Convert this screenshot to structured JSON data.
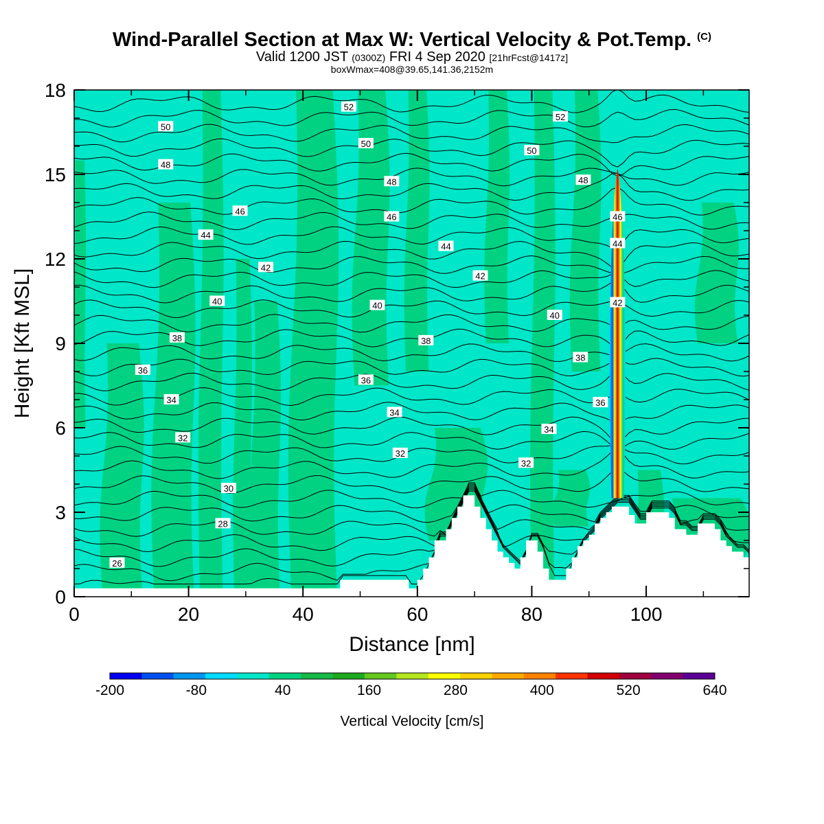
{
  "header": {
    "title": "Wind-Parallel Section at Max W: Vertical Velocity & Pot.Temp.",
    "copyright": "(C)",
    "valid_prefix": "Valid 1200 JST",
    "zulu": "(0300Z)",
    "valid_date": "FRI 4 Sep 2020",
    "forecast_tag": "[21hrFcst@1417z]",
    "box_info": "boxWmax=408@39.65,141.36,2152m"
  },
  "chart_data": {
    "type": "contour cross-section (filled vertical velocity + potential temperature isolines)",
    "xlabel": "Distance [nm]",
    "ylabel": "Height [Kft MSL]",
    "xlim": [
      0,
      118
    ],
    "ylim": [
      0,
      18
    ],
    "xticks": [
      0,
      20,
      40,
      60,
      80,
      100
    ],
    "yticks": [
      0,
      3,
      6,
      9,
      12,
      15,
      18
    ],
    "colorbar": {
      "label": "Vertical Velocity [cm/s]",
      "tick_labels": [
        "-200",
        "-80",
        "40",
        "160",
        "280",
        "400",
        "520",
        "640"
      ],
      "range": [
        -200,
        640
      ],
      "colors": [
        "#0000f0",
        "#0050f0",
        "#0096f0",
        "#00dcff",
        "#00e6c8",
        "#00d282",
        "#14b946",
        "#1eaa1e",
        "#64c81e",
        "#b4e61e",
        "#ffff00",
        "#fad200",
        "#ffaa00",
        "#ff8200",
        "#ff3200",
        "#d20000",
        "#a0003c",
        "#82006e",
        "#5a0096"
      ]
    },
    "background_fields": {
      "light_band_color": "#00e6c8",
      "green_band_color": "#00d282",
      "terrain_color": "#ffffff"
    },
    "updraft_core": {
      "x_nm": 95,
      "base_kft": 3.5,
      "top_kft": 15.2,
      "max_w_cms": 408
    },
    "terrain_profile": {
      "x": [
        0,
        46,
        46.5,
        58,
        58.5,
        59,
        60,
        61,
        62,
        63,
        64,
        65,
        66,
        67,
        68,
        69,
        70,
        71,
        72,
        73,
        74,
        75,
        76,
        77,
        78,
        79,
        80,
        81,
        82,
        83,
        84,
        85,
        86,
        87,
        88,
        89,
        90,
        91,
        92,
        93,
        94,
        95,
        96,
        97,
        98,
        99,
        100,
        101,
        102,
        103,
        104,
        105,
        106,
        107,
        108,
        109,
        110,
        111,
        112,
        113,
        114,
        115,
        116,
        117,
        118
      ],
      "h": [
        0.3,
        0.3,
        0.6,
        0.6,
        0.3,
        0.3,
        0.6,
        1.0,
        1.4,
        2.0,
        2.0,
        2.4,
        2.8,
        3.2,
        3.6,
        3.6,
        3.2,
        2.8,
        2.4,
        2.0,
        1.6,
        1.4,
        1.2,
        1.0,
        1.4,
        2.0,
        2.0,
        1.6,
        1.0,
        0.6,
        0.6,
        0.6,
        1.0,
        1.4,
        1.8,
        2.0,
        2.2,
        2.6,
        2.8,
        3.0,
        3.2,
        3.2,
        3.2,
        2.9,
        2.6,
        2.6,
        3.0,
        3.0,
        3.0,
        3.0,
        2.8,
        2.4,
        2.4,
        2.2,
        2.2,
        2.6,
        2.6,
        2.6,
        2.4,
        2.0,
        1.8,
        1.6,
        1.6,
        1.4,
        1.4
      ]
    },
    "isentrope_labels": [
      {
        "text": "26",
        "x": 7.5,
        "y": 1.2
      },
      {
        "text": "28",
        "x": 26,
        "y": 2.6
      },
      {
        "text": "30",
        "x": 27,
        "y": 3.85
      },
      {
        "text": "32",
        "x": 19,
        "y": 5.65
      },
      {
        "text": "32",
        "x": 57,
        "y": 5.1
      },
      {
        "text": "32",
        "x": 79,
        "y": 4.75
      },
      {
        "text": "34",
        "x": 17,
        "y": 7.0
      },
      {
        "text": "34",
        "x": 56,
        "y": 6.55
      },
      {
        "text": "34",
        "x": 83,
        "y": 5.95
      },
      {
        "text": "36",
        "x": 12,
        "y": 8.05
      },
      {
        "text": "36",
        "x": 51,
        "y": 7.7
      },
      {
        "text": "36",
        "x": 92,
        "y": 6.9
      },
      {
        "text": "38",
        "x": 18,
        "y": 9.2
      },
      {
        "text": "38",
        "x": 61.5,
        "y": 9.1
      },
      {
        "text": "38",
        "x": 88.5,
        "y": 8.5
      },
      {
        "text": "40",
        "x": 25,
        "y": 10.5
      },
      {
        "text": "40",
        "x": 53,
        "y": 10.35
      },
      {
        "text": "40",
        "x": 84,
        "y": 10.0
      },
      {
        "text": "42",
        "x": 33.5,
        "y": 11.7
      },
      {
        "text": "42",
        "x": 71,
        "y": 11.4
      },
      {
        "text": "42",
        "x": 95,
        "y": 10.45
      },
      {
        "text": "44",
        "x": 23,
        "y": 12.85
      },
      {
        "text": "44",
        "x": 65,
        "y": 12.45
      },
      {
        "text": "44",
        "x": 95,
        "y": 12.55
      },
      {
        "text": "46",
        "x": 29,
        "y": 13.7
      },
      {
        "text": "46",
        "x": 55.5,
        "y": 13.5
      },
      {
        "text": "46",
        "x": 95,
        "y": 13.5
      },
      {
        "text": "48",
        "x": 16,
        "y": 15.35
      },
      {
        "text": "48",
        "x": 55.5,
        "y": 14.75
      },
      {
        "text": "48",
        "x": 89,
        "y": 14.8
      },
      {
        "text": "50",
        "x": 16,
        "y": 16.7
      },
      {
        "text": "50",
        "x": 51,
        "y": 16.1
      },
      {
        "text": "50",
        "x": 80,
        "y": 15.85
      },
      {
        "text": "52",
        "x": 48,
        "y": 17.4
      },
      {
        "text": "52",
        "x": 85,
        "y": 17.05
      }
    ]
  }
}
